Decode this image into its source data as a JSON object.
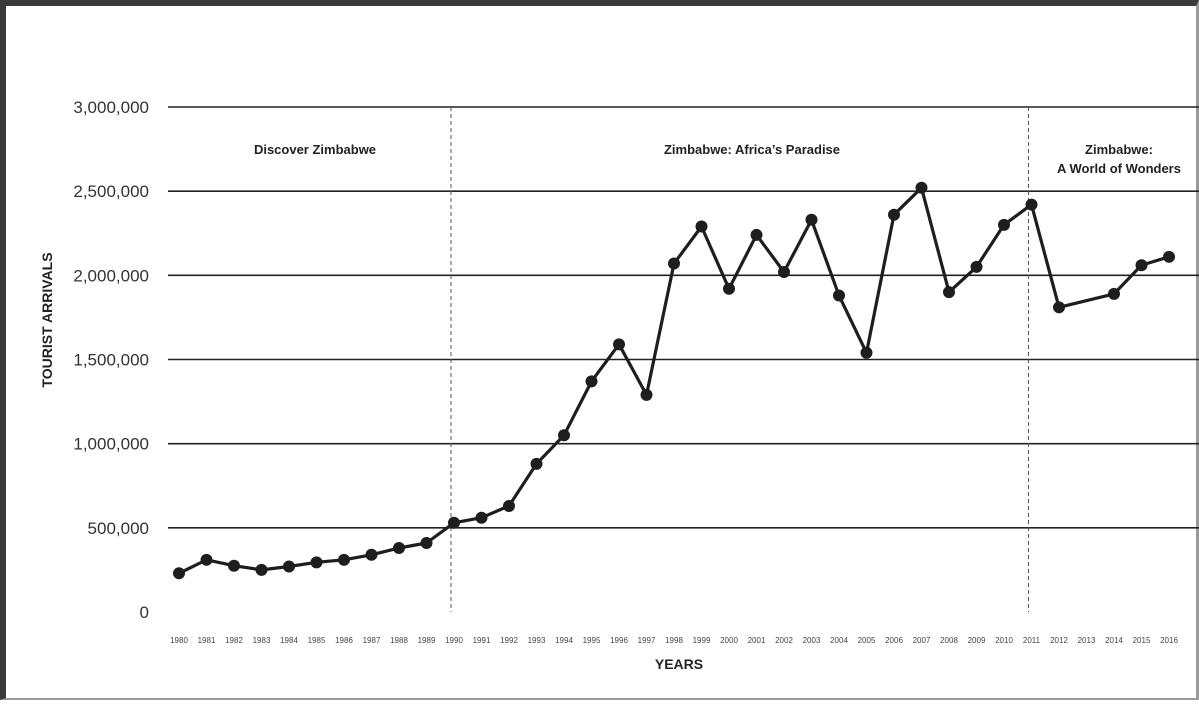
{
  "chart_data": {
    "type": "line",
    "title": "",
    "xlabel": "YEARS",
    "ylabel": "TOURIST ARRIVALS",
    "ylim": [
      0,
      3000000
    ],
    "grid": true,
    "y_ticks": [
      0,
      500000,
      1000000,
      1500000,
      2000000,
      2500000,
      3000000
    ],
    "y_tick_labels": [
      "0",
      "500,000",
      "1,000,000",
      "1,500,000",
      "2,000,000",
      "2,500,000",
      "3,000,000"
    ],
    "x": [
      1980,
      1981,
      1982,
      1983,
      1984,
      1985,
      1986,
      1987,
      1988,
      1989,
      1990,
      1991,
      1992,
      1993,
      1994,
      1995,
      1996,
      1997,
      1998,
      1999,
      2000,
      2001,
      2002,
      2003,
      2004,
      2005,
      2006,
      2007,
      2008,
      2009,
      2010,
      2011,
      2012,
      2013,
      2014,
      2015,
      2016
    ],
    "x_tick_labels": [
      "1980",
      "1981",
      "1982",
      "1983",
      "1984",
      "1985",
      "1986",
      "1987",
      "1988",
      "1989",
      "1990",
      "1991",
      "1992",
      "1993",
      "1994",
      "1995",
      "1996",
      "1997",
      "1998",
      "1999",
      "2000",
      "2001",
      "2002",
      "2003",
      "2004",
      "2005",
      "2006",
      "2007",
      "2008",
      "2009",
      "2010",
      "2011",
      "2012",
      "2013",
      "2014",
      "2015",
      "2016"
    ],
    "points": [
      {
        "year": 1980,
        "value": 230000
      },
      {
        "year": 1981,
        "value": 310000
      },
      {
        "year": 1982,
        "value": 275000
      },
      {
        "year": 1983,
        "value": 250000
      },
      {
        "year": 1984,
        "value": 270000
      },
      {
        "year": 1985,
        "value": 295000
      },
      {
        "year": 1986,
        "value": 310000
      },
      {
        "year": 1987,
        "value": 340000
      },
      {
        "year": 1988,
        "value": 380000
      },
      {
        "year": 1989,
        "value": 410000
      },
      {
        "year": 1990,
        "value": 530000
      },
      {
        "year": 1991,
        "value": 560000
      },
      {
        "year": 1992,
        "value": 630000
      },
      {
        "year": 1993,
        "value": 880000
      },
      {
        "year": 1994,
        "value": 1050000
      },
      {
        "year": 1995,
        "value": 1370000
      },
      {
        "year": 1996,
        "value": 1590000
      },
      {
        "year": 1997,
        "value": 1290000
      },
      {
        "year": 1998,
        "value": 2070000
      },
      {
        "year": 1999,
        "value": 2290000
      },
      {
        "year": 2000,
        "value": 1920000
      },
      {
        "year": 2001,
        "value": 2240000
      },
      {
        "year": 2002,
        "value": 2020000
      },
      {
        "year": 2003,
        "value": 2330000
      },
      {
        "year": 2004,
        "value": 1880000
      },
      {
        "year": 2005,
        "value": 1540000
      },
      {
        "year": 2006,
        "value": 2360000
      },
      {
        "year": 2007,
        "value": 2520000
      },
      {
        "year": 2008,
        "value": 1900000
      },
      {
        "year": 2009,
        "value": 2050000
      },
      {
        "year": 2010,
        "value": 2300000
      },
      {
        "year": 2011,
        "value": 2420000
      },
      {
        "year": 2012,
        "value": 1810000
      },
      {
        "year": 2014,
        "value": 1890000
      },
      {
        "year": 2015,
        "value": 2060000
      },
      {
        "year": 2016,
        "value": 2110000
      }
    ],
    "eras": [
      {
        "lines": [
          "Discover Zimbabwe"
        ],
        "from": 1980,
        "to": 1990
      },
      {
        "lines": [
          "Zimbabwe: Africa’s Paradise"
        ],
        "from": 1990,
        "to": 2011
      },
      {
        "lines": [
          "Zimbabwe:",
          "A World of Wonders"
        ],
        "from": 2011,
        "to": 2016
      }
    ],
    "era_boundaries": [
      1990,
      2011
    ],
    "line_color": "#1e1e1e",
    "grid_color": "#222222",
    "divider_color": "#555555"
  }
}
